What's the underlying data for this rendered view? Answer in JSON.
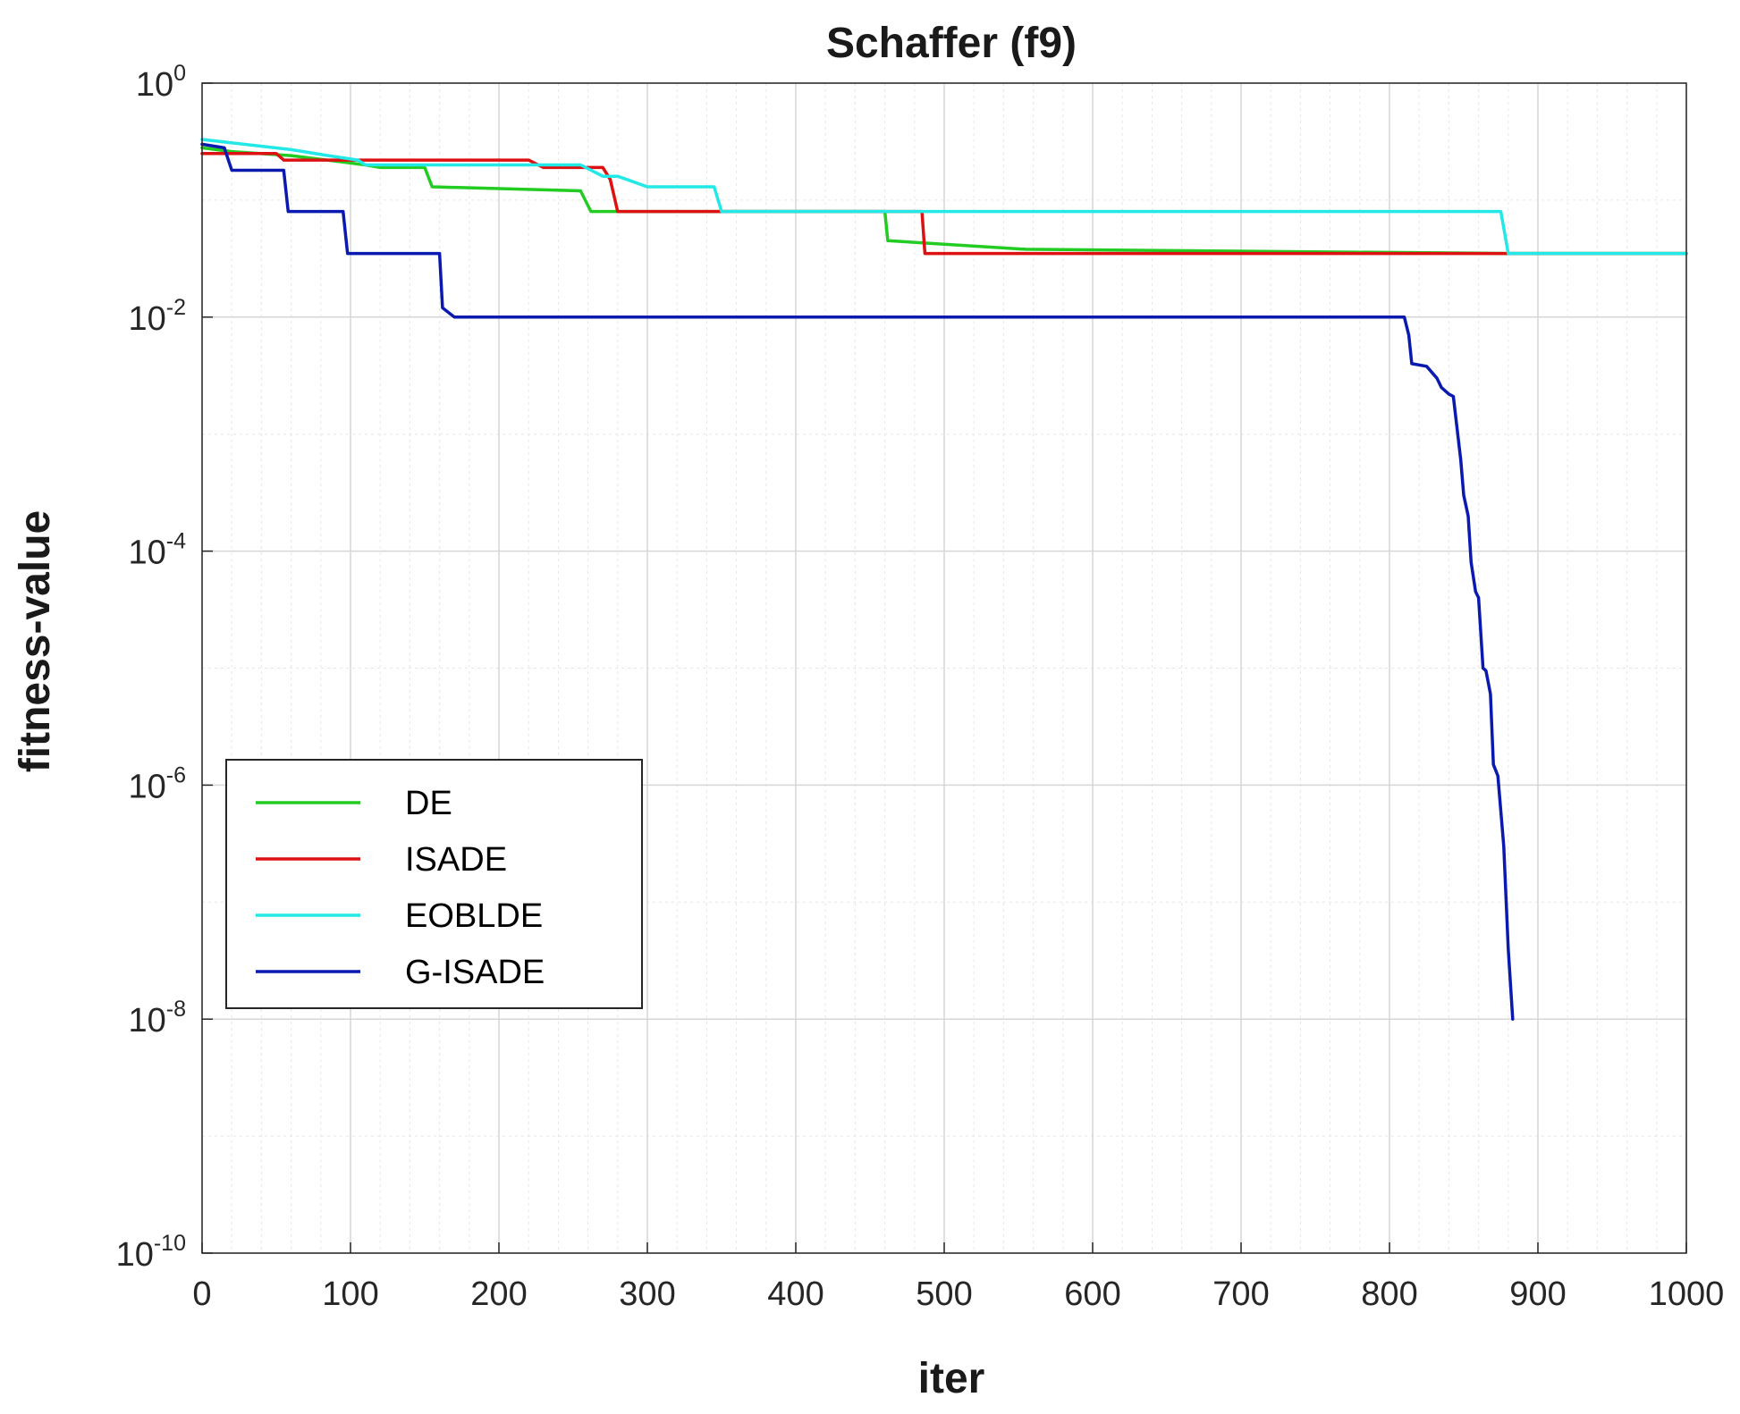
{
  "chart_data": {
    "type": "line",
    "title": "Schaffer (f9)",
    "xlabel": "iter",
    "ylabel": "fitness-value",
    "xlim": [
      0,
      1000
    ],
    "ylim": [
      1e-10,
      1
    ],
    "yscale": "log",
    "grid": true,
    "legend_position": "lower-left",
    "x_ticks": [
      0,
      100,
      200,
      300,
      400,
      500,
      600,
      700,
      800,
      900,
      1000
    ],
    "x_tick_labels": [
      "0",
      "100",
      "200",
      "300",
      "400",
      "500",
      "600",
      "700",
      "800",
      "900",
      "1000"
    ],
    "y_ticks": [
      {
        "base": "10",
        "exp": "0",
        "value": 1
      },
      {
        "base": "10",
        "exp": "-2",
        "value": 0.01
      },
      {
        "base": "10",
        "exp": "-4",
        "value": 0.0001
      },
      {
        "base": "10",
        "exp": "-6",
        "value": 1e-06
      },
      {
        "base": "10",
        "exp": "-8",
        "value": 1e-08
      },
      {
        "base": "10",
        "exp": "-10",
        "value": 1e-10
      }
    ],
    "series": [
      {
        "name": "DE",
        "color": "#22cc22",
        "x": [
          0,
          20,
          60,
          110,
          120,
          150,
          155,
          255,
          262,
          350,
          460,
          462,
          555,
          880,
          1000
        ],
        "y": [
          0.28,
          0.26,
          0.24,
          0.2,
          0.19,
          0.19,
          0.13,
          0.12,
          0.08,
          0.08,
          0.08,
          0.045,
          0.038,
          0.035,
          0.035
        ]
      },
      {
        "name": "ISADE",
        "color": "#dd1111",
        "x": [
          0,
          50,
          55,
          145,
          150,
          220,
          230,
          270,
          275,
          280,
          350,
          485,
          487,
          878,
          880,
          1000
        ],
        "y": [
          0.25,
          0.25,
          0.22,
          0.22,
          0.22,
          0.22,
          0.19,
          0.19,
          0.15,
          0.08,
          0.08,
          0.08,
          0.035,
          0.035,
          0.035,
          0.035
        ]
      },
      {
        "name": "EOBLDE",
        "color": "#22e8e8",
        "x": [
          0,
          60,
          85,
          105,
          110,
          255,
          270,
          280,
          300,
          345,
          350,
          875,
          880,
          1000
        ],
        "y": [
          0.33,
          0.27,
          0.24,
          0.22,
          0.2,
          0.2,
          0.16,
          0.16,
          0.13,
          0.13,
          0.08,
          0.08,
          0.035,
          0.035
        ]
      },
      {
        "name": "G-ISADE",
        "color": "#0a1ab0",
        "x": [
          0,
          15,
          20,
          55,
          58,
          95,
          98,
          160,
          162,
          170,
          500,
          810,
          813,
          815,
          825,
          832,
          835,
          840,
          843,
          848,
          850,
          853,
          855,
          858,
          860,
          863,
          865,
          868,
          870,
          873,
          875,
          877,
          880,
          883
        ],
        "y": [
          0.3,
          0.28,
          0.18,
          0.18,
          0.08,
          0.08,
          0.035,
          0.035,
          0.012,
          0.01,
          0.01,
          0.01,
          0.007,
          0.004,
          0.0038,
          0.003,
          0.0025,
          0.0022,
          0.0021,
          0.0006,
          0.0003,
          0.0002,
          8e-05,
          4.5e-05,
          4e-05,
          1e-05,
          9.5e-06,
          6e-06,
          1.5e-06,
          1.2e-06,
          6e-07,
          3e-07,
          4e-08,
          1e-08
        ]
      }
    ]
  }
}
